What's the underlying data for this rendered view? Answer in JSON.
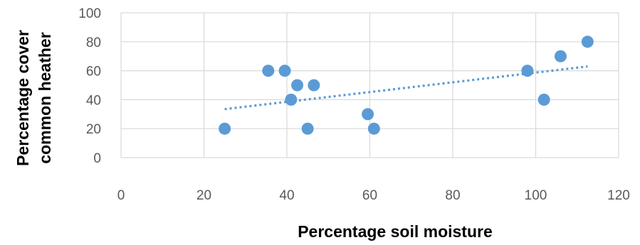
{
  "chart_data": {
    "type": "scatter",
    "title": "",
    "xlabel": "Percentage soil moisture",
    "ylabel_lines": [
      "Percentage cover",
      "common heather"
    ],
    "xlim": [
      0,
      120
    ],
    "ylim": [
      0,
      100
    ],
    "x_ticks": [
      0,
      20,
      40,
      60,
      80,
      100,
      120
    ],
    "y_ticks": [
      0,
      20,
      40,
      60,
      80,
      100
    ],
    "grid": true,
    "legend": "none",
    "colors": {
      "points": "#5b9bd5",
      "trendline": "#5b9bd5",
      "grid": "#d9d9d9",
      "tick_text": "#595959"
    },
    "series": [
      {
        "x": [
          25,
          35.5,
          39.5,
          41,
          42.5,
          45,
          46.5,
          59.5,
          61,
          98,
          102,
          106,
          112.5
        ],
        "y": [
          20,
          60,
          60,
          40,
          50,
          20,
          50,
          30,
          20,
          60,
          40,
          70,
          80
        ]
      }
    ],
    "trendline": {
      "type": "linear",
      "style": "dotted",
      "x_range": [
        25,
        112.5
      ]
    }
  }
}
